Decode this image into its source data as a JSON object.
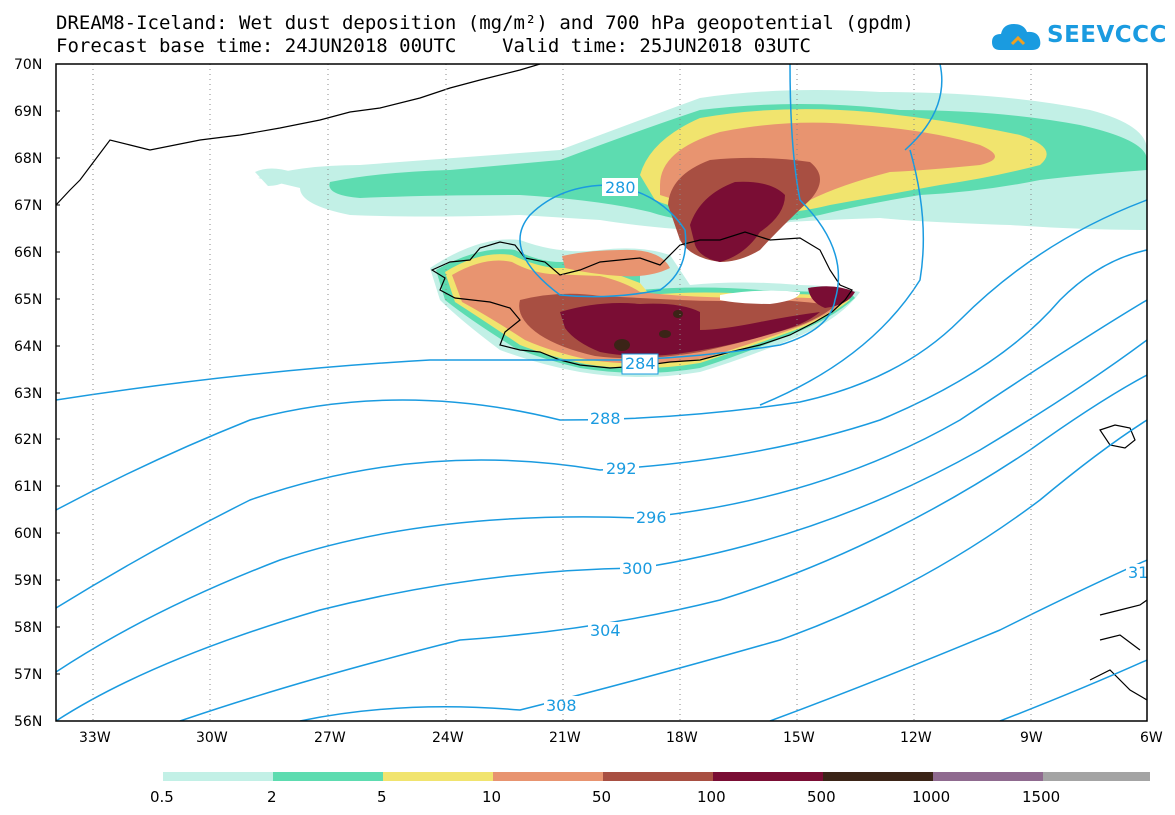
{
  "title": {
    "line1": "DREAM8-Iceland: Wet dust deposition (mg/m²) and 700 hPa geopotential (gpdm)",
    "line2": "Forecast base time: 24JUN2018 00UTC    Valid time: 25JUN2018 03UTC"
  },
  "logo": {
    "text": "SEEVCCC",
    "icon": "cloud-icon"
  },
  "colors": {
    "contour": "#1a9be0",
    "classes": [
      "#c2f0e6",
      "#5ddcb0",
      "#f1e46e",
      "#e89470",
      "#a84f42",
      "#7a0d34",
      "#3b2417",
      "#8f6a8f",
      "#a4a4a4"
    ]
  },
  "axes": {
    "lat_labels": [
      "70N",
      "69N",
      "68N",
      "67N",
      "66N",
      "65N",
      "64N",
      "63N",
      "62N",
      "61N",
      "60N",
      "59N",
      "58N",
      "57N",
      "56N"
    ],
    "lon_labels": [
      "33W",
      "30W",
      "27W",
      "24W",
      "21W",
      "18W",
      "15W",
      "12W",
      "9W",
      "6W"
    ]
  },
  "contours": [
    "280",
    "284",
    "288",
    "292",
    "296",
    "300",
    "304",
    "308",
    "31"
  ],
  "legend": {
    "labels": [
      "0.5",
      "2",
      "5",
      "10",
      "50",
      "100",
      "500",
      "1000",
      "1500"
    ]
  }
}
